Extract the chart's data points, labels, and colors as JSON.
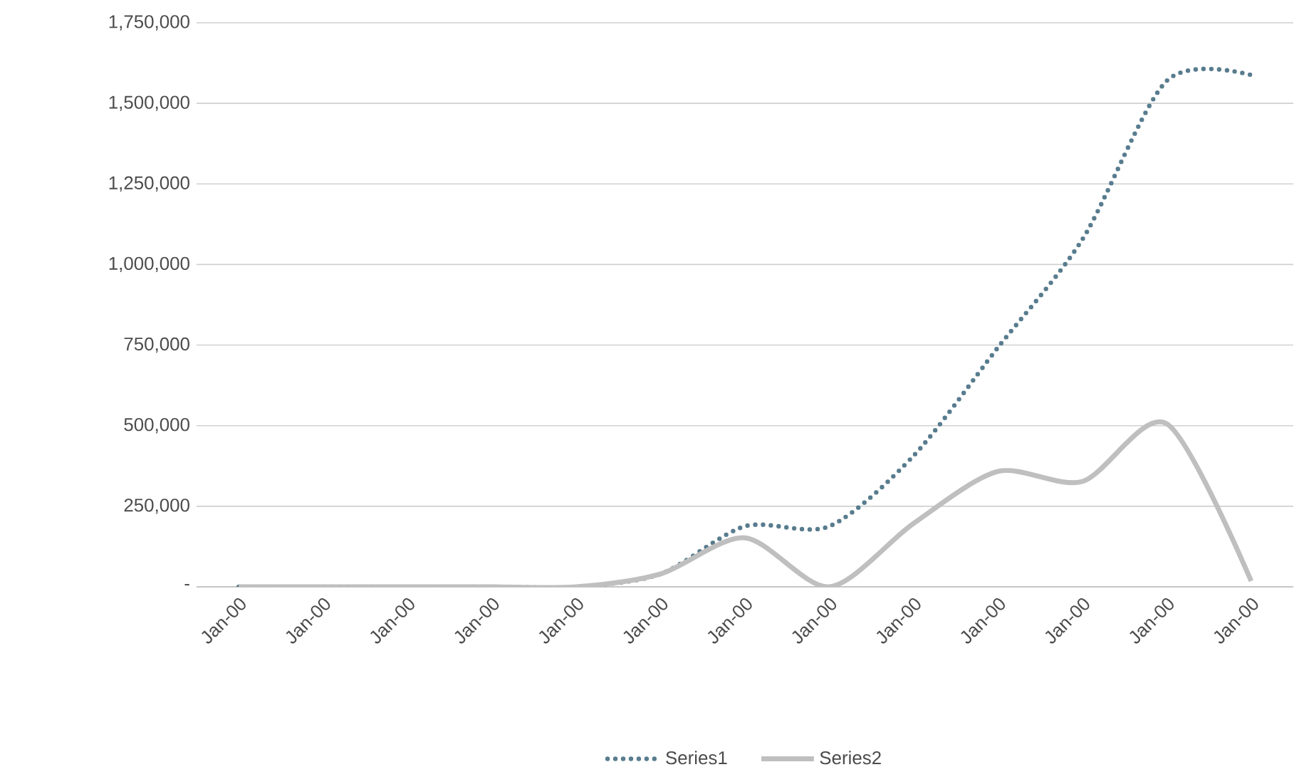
{
  "chart_data": {
    "type": "line",
    "categories": [
      "Jan-00",
      "Jan-00",
      "Jan-00",
      "Jan-00",
      "Jan-00",
      "Jan-00",
      "Jan-00",
      "Jan-00",
      "Jan-00",
      "Jan-00",
      "Jan-00",
      "Jan-00",
      "Jan-00"
    ],
    "series": [
      {
        "name": "Series1",
        "color": "#587c8e",
        "line_style": "dotted",
        "values": [
          0,
          0,
          0,
          0,
          0,
          40000,
          188000,
          188000,
          407000,
          743000,
          1078000,
          1570000,
          1588000
        ]
      },
      {
        "name": "Series2",
        "color": "#bfbfbf",
        "line_style": "solid",
        "values": [
          0,
          0,
          0,
          0,
          0,
          40000,
          152000,
          0,
          197000,
          358000,
          327000,
          506000,
          18000
        ]
      }
    ],
    "ylim": [
      0,
      1750000
    ],
    "yticks": [
      {
        "value": 0,
        "label": "-"
      },
      {
        "value": 250000,
        "label": "250,000"
      },
      {
        "value": 500000,
        "label": "500,000"
      },
      {
        "value": 750000,
        "label": "750,000"
      },
      {
        "value": 1000000,
        "label": "1,000,000"
      },
      {
        "value": 1250000,
        "label": "1,250,000"
      },
      {
        "value": 1500000,
        "label": "1,500,000"
      },
      {
        "value": 1750000,
        "label": "1,750,000"
      }
    ],
    "grid": "y",
    "legend": "bottom",
    "marker": "none"
  }
}
